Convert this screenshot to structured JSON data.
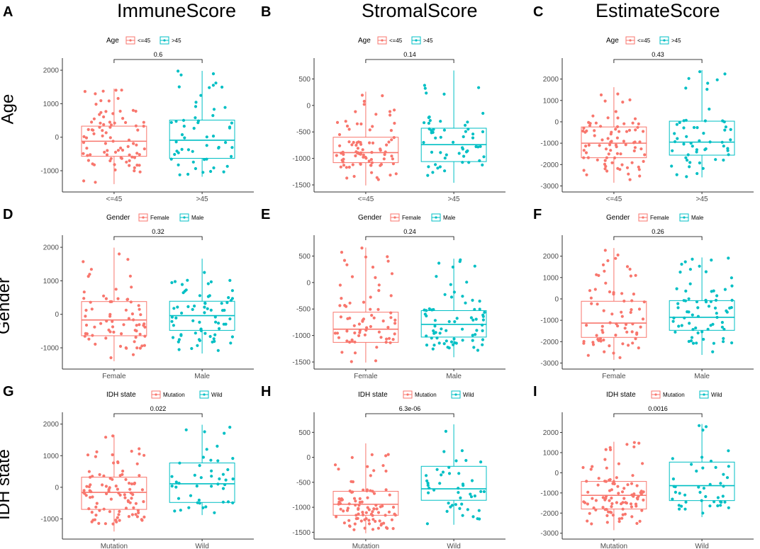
{
  "figure": {
    "column_titles": [
      "ImmuneScore",
      "StromalScore",
      "EstimateScore"
    ],
    "row_labels": [
      "Age",
      "Gender",
      "IDH state"
    ],
    "colors": {
      "group1": "#F8766D",
      "group2": "#00BFC4",
      "axis": "#333333",
      "tick_text": "#4D4D4D"
    }
  },
  "chart_data": [
    {
      "id": "A",
      "letter": "A",
      "type": "box",
      "legend_title": "Age",
      "groups": [
        "<=45",
        ">45"
      ],
      "pvalue": "0.6",
      "yticks": [
        -1000,
        0,
        1000,
        2000
      ],
      "ylim": [
        -1550,
        2150
      ],
      "n": [
        85,
        55
      ],
      "boxes": [
        {
          "min": -1400,
          "q1": -570,
          "median": -120,
          "q3": 330,
          "max": 1450
        },
        {
          "min": -1180,
          "q1": -630,
          "median": -90,
          "q3": 510,
          "max": 1980
        }
      ]
    },
    {
      "id": "B",
      "letter": "B",
      "type": "box",
      "legend_title": "Age",
      "groups": [
        "<=45",
        ">45"
      ],
      "pvalue": "0.14",
      "yticks": [
        -1500,
        -1000,
        -500,
        0,
        500
      ],
      "ylim": [
        -1580,
        760
      ],
      "n": [
        85,
        55
      ],
      "boxes": [
        {
          "min": -1510,
          "q1": -1080,
          "median": -890,
          "q3": -600,
          "max": 260
        },
        {
          "min": -1460,
          "q1": -1060,
          "median": -740,
          "q3": -430,
          "max": 660
        }
      ]
    },
    {
      "id": "C",
      "letter": "C",
      "type": "box",
      "legend_title": "Age",
      "groups": [
        "<=45",
        ">45"
      ],
      "pvalue": "0.43",
      "yticks": [
        -3000,
        -2000,
        -1000,
        0,
        1000,
        2000
      ],
      "ylim": [
        -3150,
        2650
      ],
      "n": [
        85,
        55
      ],
      "boxes": [
        {
          "min": -2850,
          "q1": -1680,
          "median": -1000,
          "q3": -240,
          "max": 1620
        },
        {
          "min": -2600,
          "q1": -1560,
          "median": -950,
          "q3": 30,
          "max": 2420
        }
      ]
    },
    {
      "id": "D",
      "letter": "D",
      "type": "box",
      "legend_title": "Gender",
      "groups": [
        "Female",
        "Male"
      ],
      "pvalue": "0.32",
      "yticks": [
        -1000,
        0,
        1000,
        2000
      ],
      "ylim": [
        -1550,
        2150
      ],
      "n": [
        70,
        70
      ],
      "boxes": [
        {
          "min": -1400,
          "q1": -640,
          "median": -170,
          "q3": 380,
          "max": 1990
        },
        {
          "min": -1170,
          "q1": -480,
          "median": -40,
          "q3": 390,
          "max": 1660
        }
      ]
    },
    {
      "id": "E",
      "letter": "E",
      "type": "box",
      "legend_title": "Gender",
      "groups": [
        "Female",
        "Male"
      ],
      "pvalue": "0.24",
      "yticks": [
        -1500,
        -1000,
        -500,
        0,
        500
      ],
      "ylim": [
        -1580,
        760
      ],
      "n": [
        70,
        70
      ],
      "boxes": [
        {
          "min": -1510,
          "q1": -1130,
          "median": -880,
          "q3": -560,
          "max": 660
        },
        {
          "min": -1410,
          "q1": -1030,
          "median": -790,
          "q3": -530,
          "max": 450
        }
      ]
    },
    {
      "id": "F",
      "letter": "F",
      "type": "box",
      "legend_title": "Gender",
      "groups": [
        "Female",
        "Male"
      ],
      "pvalue": "0.26",
      "yticks": [
        -3000,
        -2000,
        -1000,
        0,
        1000,
        2000
      ],
      "ylim": [
        -3150,
        2650
      ],
      "n": [
        70,
        70
      ],
      "boxes": [
        {
          "min": -2850,
          "q1": -1800,
          "median": -1130,
          "q3": -110,
          "max": 2380
        },
        {
          "min": -2620,
          "q1": -1470,
          "median": -860,
          "q3": -80,
          "max": 1940
        }
      ]
    },
    {
      "id": "G",
      "letter": "G",
      "type": "box",
      "legend_title": "IDH state",
      "groups": [
        "Mutation",
        "Wild"
      ],
      "pvalue": "0.022",
      "yticks": [
        -1000,
        0,
        1000,
        2000
      ],
      "ylim": [
        -1550,
        2150
      ],
      "n": [
        95,
        45
      ],
      "boxes": [
        {
          "min": -1400,
          "q1": -700,
          "median": -160,
          "q3": 320,
          "max": 1660
        },
        {
          "min": -880,
          "q1": -480,
          "median": 110,
          "q3": 770,
          "max": 1980
        }
      ]
    },
    {
      "id": "H",
      "letter": "H",
      "type": "box",
      "legend_title": "IDH state",
      "groups": [
        "Mutation",
        "Wild"
      ],
      "pvalue": "6.3e-06",
      "yticks": [
        -1500,
        -1000,
        -500,
        0,
        500
      ],
      "ylim": [
        -1580,
        760
      ],
      "n": [
        95,
        45
      ],
      "boxes": [
        {
          "min": -1520,
          "q1": -1160,
          "median": -940,
          "q3": -680,
          "max": 280
        },
        {
          "min": -1350,
          "q1": -860,
          "median": -630,
          "q3": -180,
          "max": 660
        }
      ]
    },
    {
      "id": "I",
      "letter": "I",
      "type": "box",
      "legend_title": "IDH state",
      "groups": [
        "Mutation",
        "Wild"
      ],
      "pvalue": "0.0016",
      "yticks": [
        -3000,
        -2000,
        -1000,
        0,
        1000,
        2000
      ],
      "ylim": [
        -3150,
        2650
      ],
      "n": [
        95,
        45
      ],
      "boxes": [
        {
          "min": -2850,
          "q1": -1800,
          "median": -1120,
          "q3": -430,
          "max": 1540
        },
        {
          "min": -2200,
          "q1": -1380,
          "median": -640,
          "q3": 530,
          "max": 2420
        }
      ]
    }
  ]
}
